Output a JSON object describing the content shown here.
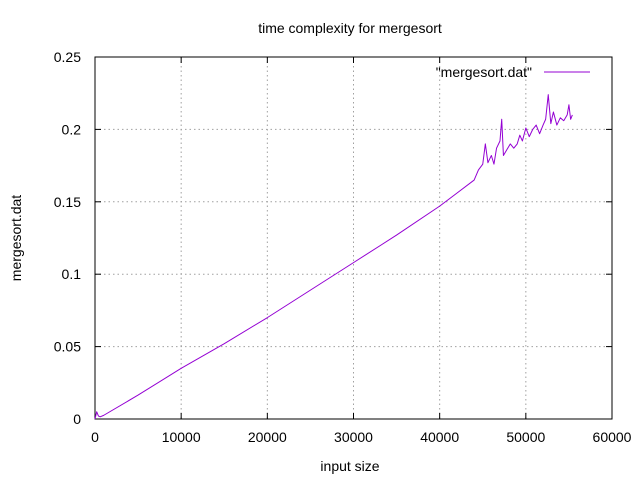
{
  "chart_data": {
    "type": "line",
    "title": "time complexity for mergesort",
    "xlabel": "input size",
    "ylabel": "mergesort.dat",
    "xlim": [
      0,
      60000
    ],
    "ylim": [
      0,
      0.25
    ],
    "x_ticks": [
      0,
      10000,
      20000,
      30000,
      40000,
      50000,
      60000
    ],
    "y_ticks": [
      0,
      0.05,
      0.1,
      0.15,
      0.2,
      0.25
    ],
    "x_tick_labels": [
      "0",
      "10000",
      "20000",
      "30000",
      "40000",
      "50000",
      "60000"
    ],
    "y_tick_labels": [
      "0",
      "0.05",
      "0.1",
      "0.15",
      "0.2",
      "0.25"
    ],
    "grid": true,
    "legend_position": "top-right",
    "series": [
      {
        "name": "\"mergesort.dat\"",
        "color": "#9400d3",
        "x": [
          0,
          200,
          400,
          600,
          1000,
          5000,
          10000,
          15000,
          20000,
          25000,
          30000,
          35000,
          40000,
          42000,
          44000,
          44500,
          45000,
          45300,
          45600,
          46000,
          46300,
          46600,
          47000,
          47200,
          47400,
          47800,
          48200,
          48600,
          49000,
          49300,
          49600,
          50000,
          50400,
          50800,
          51200,
          51600,
          52000,
          52300,
          52600,
          52900,
          53200,
          53600,
          54000,
          54400,
          54800,
          55000,
          55200,
          55400
        ],
        "y": [
          0,
          0.005,
          0.002,
          0.0015,
          0.0025,
          0.0165,
          0.035,
          0.052,
          0.07,
          0.089,
          0.108,
          0.127,
          0.147,
          0.156,
          0.165,
          0.172,
          0.176,
          0.19,
          0.177,
          0.182,
          0.176,
          0.187,
          0.192,
          0.207,
          0.182,
          0.186,
          0.19,
          0.187,
          0.19,
          0.196,
          0.192,
          0.201,
          0.195,
          0.2,
          0.203,
          0.197,
          0.203,
          0.207,
          0.224,
          0.204,
          0.212,
          0.203,
          0.208,
          0.206,
          0.21,
          0.217,
          0.207,
          0.21
        ]
      }
    ]
  }
}
